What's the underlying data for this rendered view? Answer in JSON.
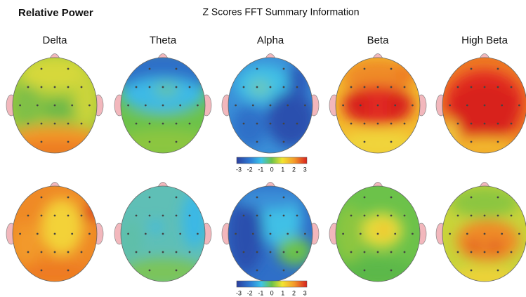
{
  "header": {
    "left_title": "Relative Power",
    "title": "Z Scores FFT Summary Information"
  },
  "bands": [
    "Delta",
    "Theta",
    "Alpha",
    "Beta",
    "High Beta"
  ],
  "scale": {
    "ticks": [
      "-3",
      "-2",
      "-1",
      "0",
      "1",
      "2",
      "3"
    ]
  }
}
